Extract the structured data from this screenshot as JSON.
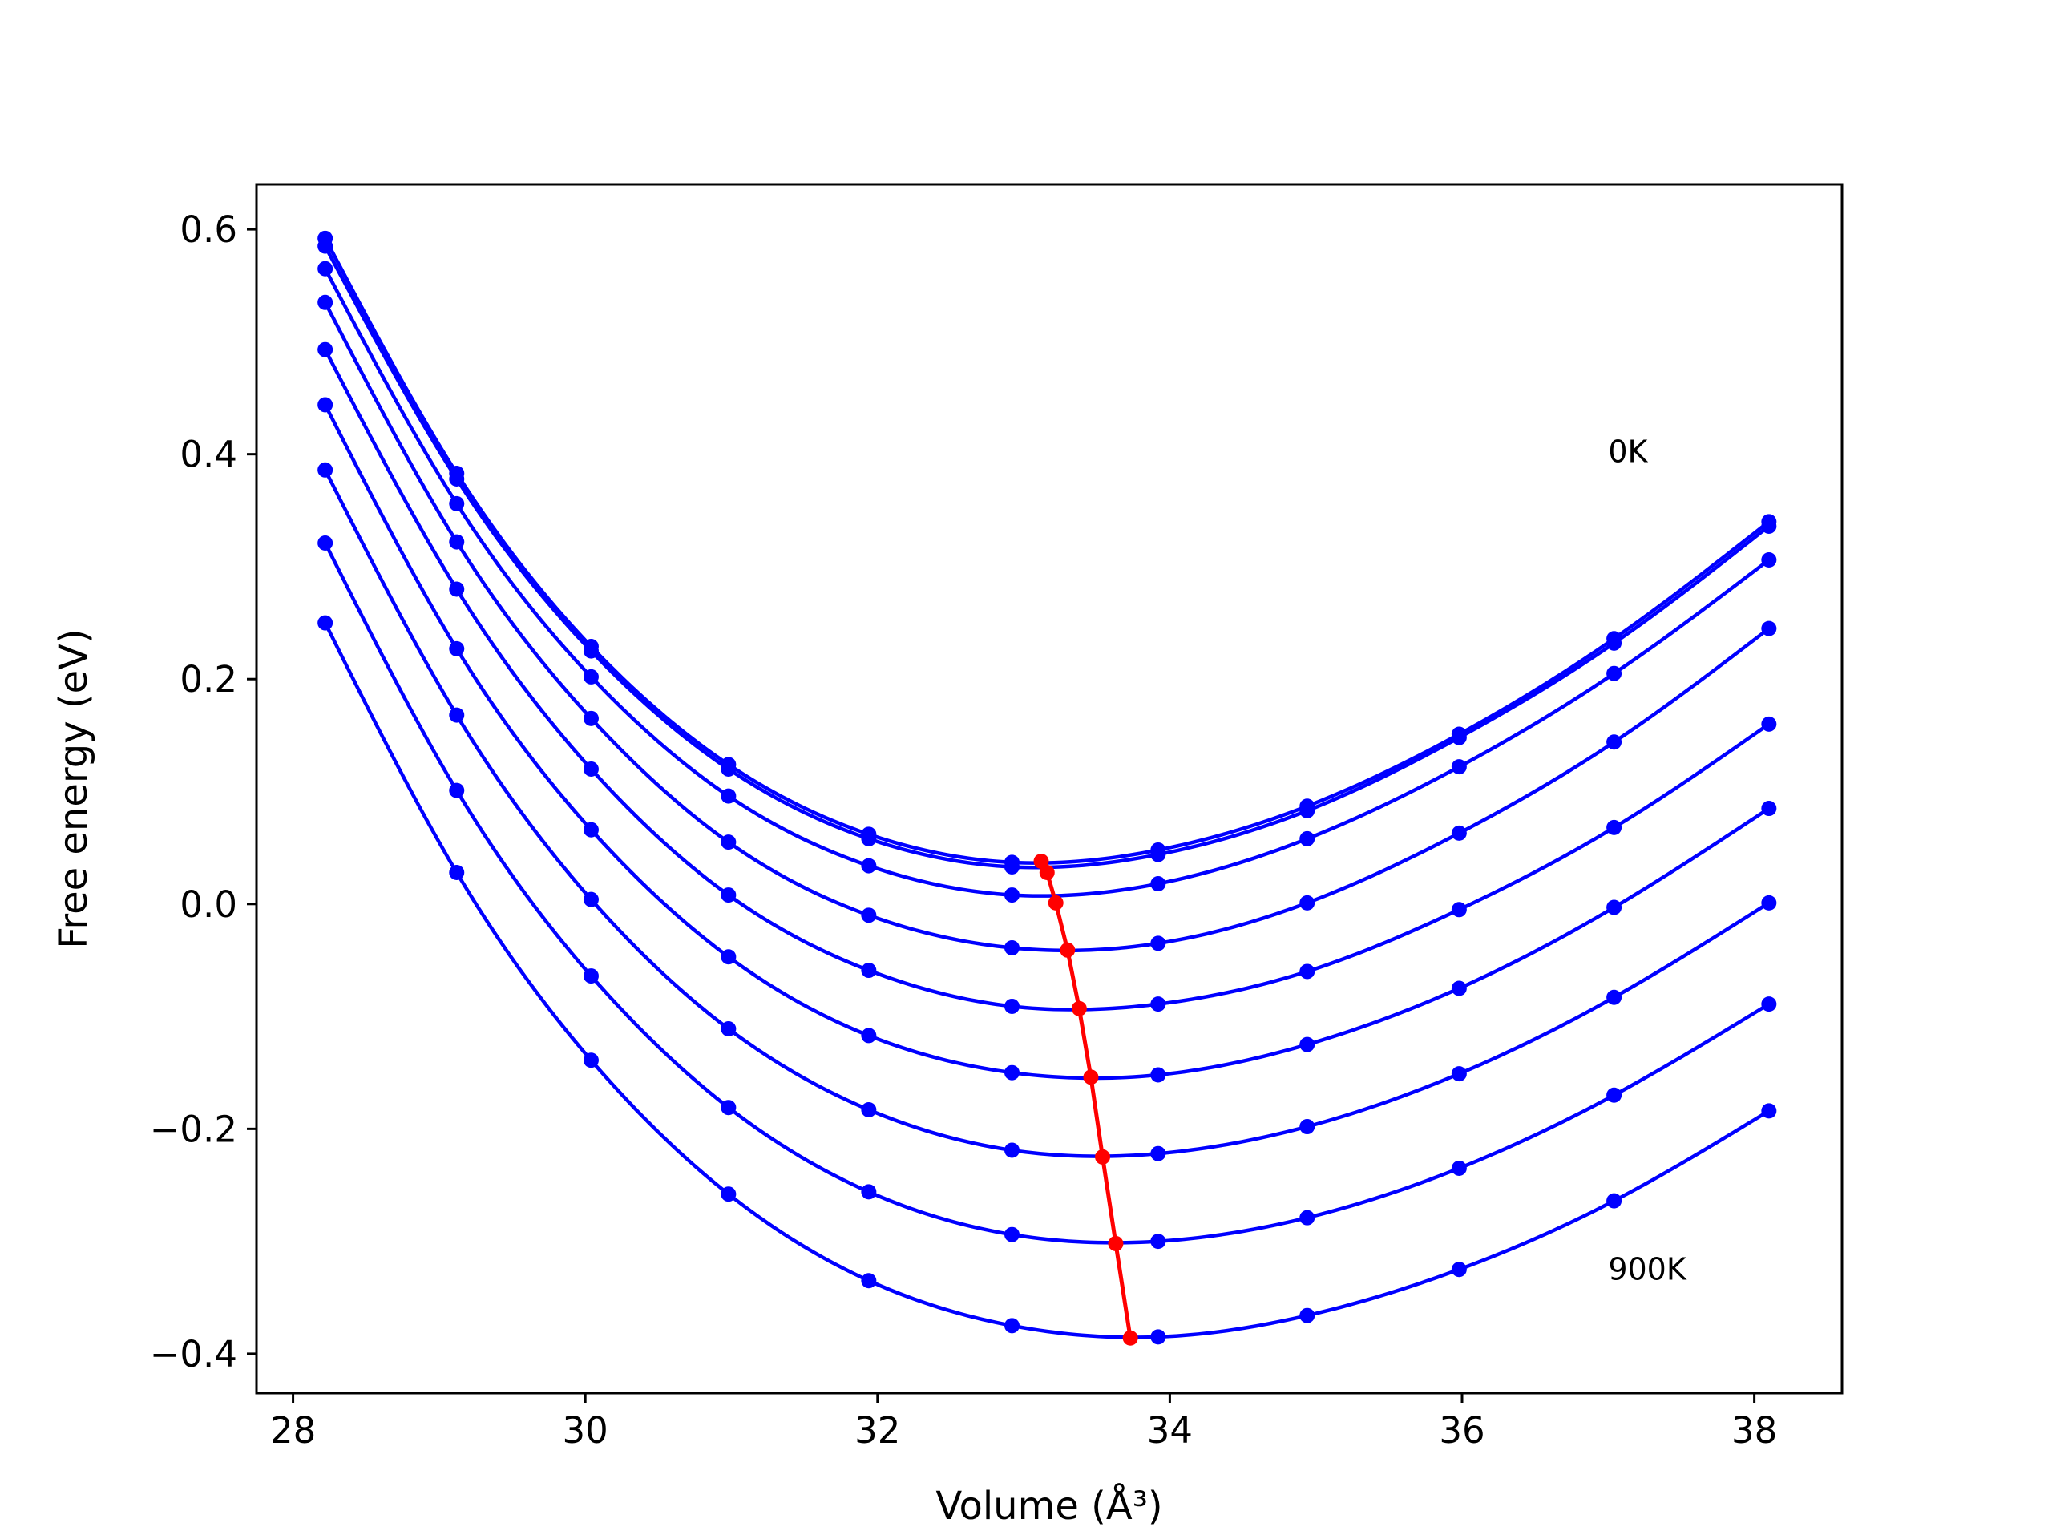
{
  "chart_data": {
    "type": "line",
    "xlabel": "Volume (Å³)",
    "ylabel": "Free energy (eV)",
    "xlim": [
      27.75,
      38.6
    ],
    "ylim": [
      -0.435,
      0.64
    ],
    "xticks": [
      28,
      30,
      32,
      34,
      36,
      38
    ],
    "xtick_labels": [
      "28",
      "30",
      "32",
      "34",
      "36",
      "38"
    ],
    "yticks": [
      -0.4,
      -0.2,
      0.0,
      0.2,
      0.4,
      0.6
    ],
    "ytick_labels": [
      "−0.4",
      "−0.2",
      "0.0",
      "0.2",
      "0.4",
      "0.6"
    ],
    "grid": false,
    "legend": "none",
    "colors": {
      "isotherm": "#0000ff",
      "equilibrium": "#ff0000"
    },
    "x": [
      28.22,
      29.12,
      30.04,
      30.98,
      31.94,
      32.92,
      33.92,
      34.94,
      35.98,
      37.04,
      38.1
    ],
    "series": [
      {
        "values": [
          0.592,
          0.383,
          0.229,
          0.124,
          0.062,
          0.037,
          0.048,
          0.087,
          0.151,
          0.236,
          0.34
        ]
      },
      {
        "values": [
          0.585,
          0.378,
          0.225,
          0.12,
          0.058,
          0.033,
          0.044,
          0.083,
          0.148,
          0.232,
          0.336
        ]
      },
      {
        "values": [
          0.565,
          0.356,
          0.202,
          0.096,
          0.034,
          0.008,
          0.018,
          0.058,
          0.122,
          0.205,
          0.306
        ]
      },
      {
        "values": [
          0.535,
          0.322,
          0.165,
          0.055,
          -0.01,
          -0.039,
          -0.035,
          0.001,
          0.063,
          0.144,
          0.245
        ]
      },
      {
        "values": [
          0.493,
          0.28,
          0.12,
          0.008,
          -0.059,
          -0.091,
          -0.089,
          -0.06,
          -0.005,
          0.068,
          0.16
        ]
      },
      {
        "values": [
          0.444,
          0.227,
          0.066,
          -0.047,
          -0.117,
          -0.15,
          -0.152,
          -0.125,
          -0.075,
          -0.003,
          0.085
        ]
      },
      {
        "values": [
          0.386,
          0.168,
          0.004,
          -0.111,
          -0.183,
          -0.219,
          -0.222,
          -0.198,
          -0.151,
          -0.083,
          0.001
        ]
      },
      {
        "values": [
          0.321,
          0.101,
          -0.064,
          -0.181,
          -0.256,
          -0.294,
          -0.3,
          -0.279,
          -0.235,
          -0.17,
          -0.089
        ]
      },
      {
        "values": [
          0.25,
          0.028,
          -0.139,
          -0.258,
          -0.335,
          -0.375,
          -0.385,
          -0.366,
          -0.325,
          -0.264,
          -0.184
        ]
      }
    ],
    "minima": {
      "x": [
        33.12,
        33.16,
        33.22,
        33.3,
        33.38,
        33.46,
        33.54,
        33.63,
        33.73
      ],
      "y": [
        0.038,
        0.028,
        0.001,
        -0.041,
        -0.093,
        -0.154,
        -0.225,
        -0.302,
        -0.386
      ]
    },
    "annotations": [
      {
        "text": "0K",
        "x": 37.0,
        "y": 0.393
      },
      {
        "text": "900K",
        "x": 37.0,
        "y": -0.334
      }
    ]
  }
}
